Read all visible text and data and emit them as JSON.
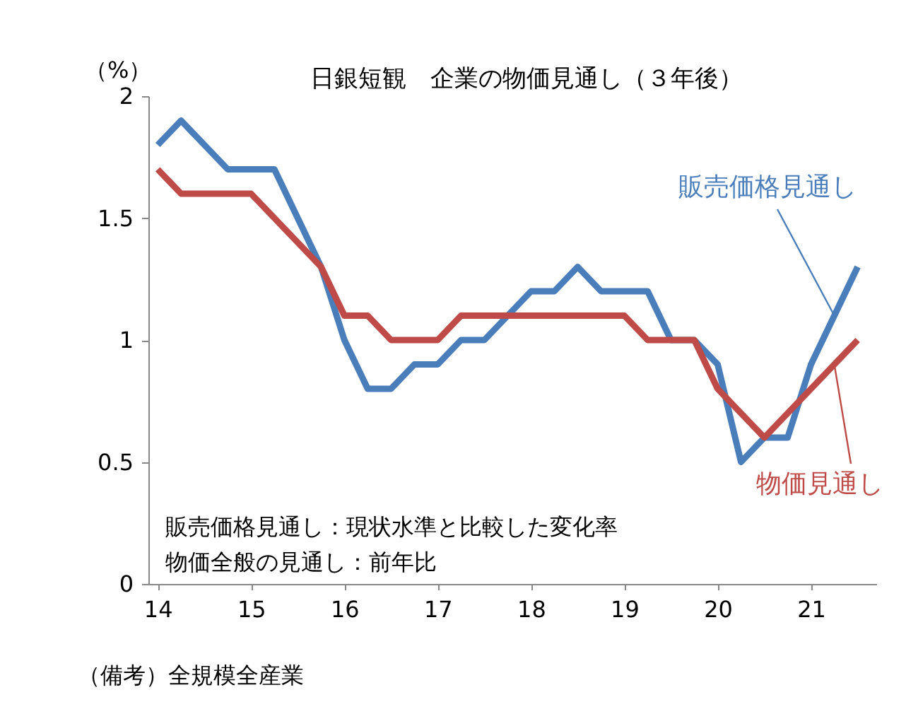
{
  "chart_data": {
    "type": "line",
    "title": "日銀短観　企業の物価見通し（３年後）",
    "ylabel": "（%）",
    "x": [
      2014,
      2014.25,
      2014.5,
      2014.75,
      2015,
      2015.25,
      2015.5,
      2015.75,
      2016,
      2016.25,
      2016.5,
      2016.75,
      2017,
      2017.25,
      2017.5,
      2017.75,
      2018,
      2018.25,
      2018.5,
      2018.75,
      2019,
      2019.25,
      2019.5,
      2019.75,
      2020,
      2020.25,
      2020.5,
      2020.75,
      2021,
      2021.25,
      2021.5
    ],
    "series": [
      {
        "name": "販売価格見通し",
        "color": "#4a7ebb",
        "values": [
          1.8,
          1.9,
          1.8,
          1.7,
          1.7,
          1.7,
          1.5,
          1.3,
          1.0,
          0.8,
          0.8,
          0.9,
          0.9,
          1.0,
          1.0,
          1.1,
          1.2,
          1.2,
          1.3,
          1.2,
          1.2,
          1.2,
          1.0,
          1.0,
          0.9,
          0.5,
          0.6,
          0.6,
          0.9,
          1.1,
          1.3
        ]
      },
      {
        "name": "物価見通し",
        "color": "#be4b48",
        "values": [
          1.7,
          1.6,
          1.6,
          1.6,
          1.6,
          1.5,
          1.4,
          1.3,
          1.1,
          1.1,
          1.0,
          1.0,
          1.0,
          1.1,
          1.1,
          1.1,
          1.1,
          1.1,
          1.1,
          1.1,
          1.1,
          1.0,
          1.0,
          1.0,
          0.8,
          0.7,
          0.6,
          0.7,
          0.8,
          0.9,
          1.0
        ]
      }
    ],
    "xlim": [
      2013.9,
      2021.7
    ],
    "xticks": [
      {
        "value": 2014,
        "label": "14"
      },
      {
        "value": 2015,
        "label": "15"
      },
      {
        "value": 2016,
        "label": "16"
      },
      {
        "value": 2017,
        "label": "17"
      },
      {
        "value": 2018,
        "label": "18"
      },
      {
        "value": 2019,
        "label": "19"
      },
      {
        "value": 2020,
        "label": "20"
      },
      {
        "value": 2021,
        "label": "21"
      }
    ],
    "ylim": [
      0,
      2
    ],
    "yticks": [
      0,
      0.5,
      1,
      1.5,
      2
    ],
    "grid": false,
    "legend": false,
    "marker": "none",
    "line_style": "solid",
    "annotations": [
      "販売価格見通し：現状水準と比較した変化率",
      "物価全般の見通し：前年比",
      "（備考）全規模全産業"
    ]
  }
}
